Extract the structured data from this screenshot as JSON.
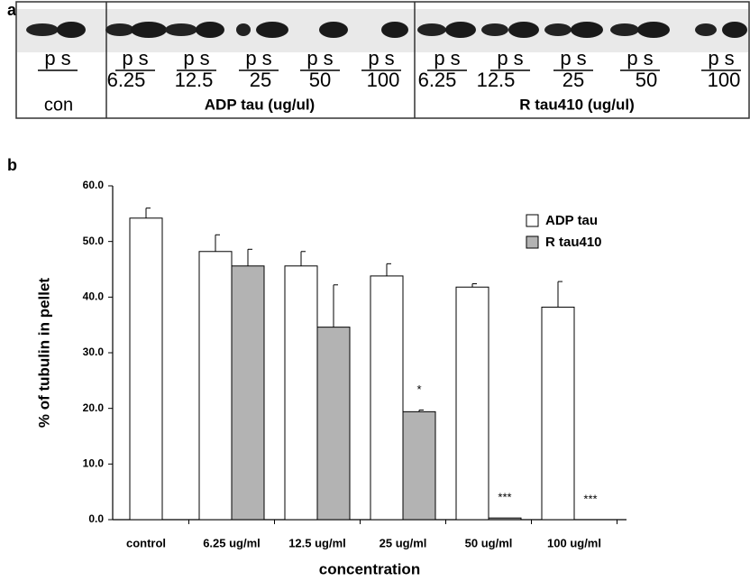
{
  "panel_a": {
    "label": "a",
    "lanes": [
      "p s",
      "p s",
      "p s",
      "p s",
      "p s",
      "p s",
      "p s",
      "p s",
      "p s",
      "p s",
      "p s"
    ],
    "groups": [
      {
        "name": "con"
      },
      {
        "name": "ADP tau (ug/ul)",
        "concentrations": [
          "6.25",
          "12.5",
          "25",
          "50",
          "100"
        ]
      },
      {
        "name": "R tau410 (ug/ul)",
        "concentrations": [
          "6.25",
          "12.5",
          "25",
          "50",
          "100"
        ]
      }
    ]
  },
  "chart_data": {
    "type": "bar",
    "label": "b",
    "x_label": "concentration",
    "y_label": "% of tubulin in pellet",
    "categories": [
      "control",
      "6.25 ug/ml",
      "12.5 ug/ml",
      "25 ug/ml",
      "50 ug/ml",
      "100 ug/ml"
    ],
    "series": [
      {
        "name": "ADP tau",
        "color": "#ffffff",
        "values": [
          54.2,
          48.2,
          45.6,
          43.8,
          41.8,
          38.2
        ],
        "errors": [
          1.8,
          3.0,
          2.6,
          2.2,
          0.6,
          4.6
        ],
        "annotations": [
          null,
          null,
          null,
          null,
          null,
          null
        ]
      },
      {
        "name": "R tau410",
        "color": "#b3b3b3",
        "values": [
          null,
          45.6,
          34.6,
          19.4,
          0.3,
          0
        ],
        "errors": [
          null,
          3.0,
          7.6,
          0.3,
          null,
          null
        ],
        "annotations": [
          null,
          null,
          null,
          "*",
          "***",
          "***"
        ]
      }
    ],
    "ylim": [
      0,
      60
    ],
    "yticks": [
      {
        "value": 0,
        "label": "0.0"
      },
      {
        "value": 10,
        "label": "10.0"
      },
      {
        "value": 20,
        "label": "20.0"
      },
      {
        "value": 30,
        "label": "30.0"
      },
      {
        "value": 40,
        "label": "40.0"
      },
      {
        "value": 50,
        "label": "50.0"
      },
      {
        "value": 60,
        "label": "60.0"
      }
    ],
    "legend": "upper right"
  }
}
